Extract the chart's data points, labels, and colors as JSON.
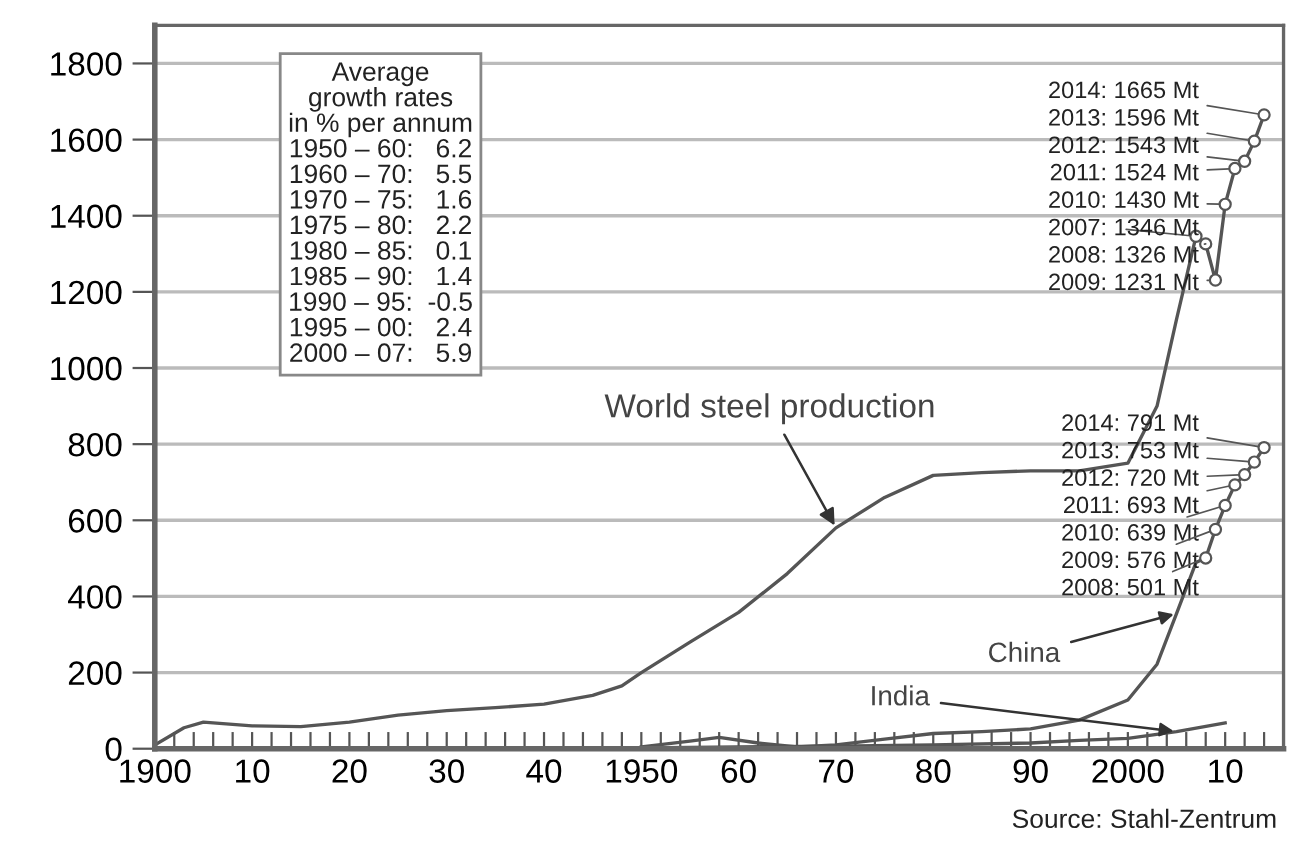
{
  "chart_data": {
    "type": "line",
    "x": [
      1900,
      1903,
      1905,
      1910,
      1915,
      1920,
      1925,
      1930,
      1935,
      1940,
      1945,
      1948,
      1950,
      1955,
      1960,
      1965,
      1970,
      1975,
      1980,
      1985,
      1990,
      1995,
      2000,
      2003,
      2005,
      2007,
      2008,
      2009,
      2010,
      2011,
      2012,
      2013,
      2014
    ],
    "series": [
      {
        "name": "World steel production",
        "color": "#555555",
        "values": [
          10,
          55,
          70,
          60,
          58,
          70,
          88,
          100,
          108,
          117,
          140,
          165,
          200,
          280,
          358,
          460,
          580,
          660,
          718,
          725,
          730,
          730,
          750,
          900,
          1128,
          1346,
          1326,
          1231,
          1430,
          1524,
          1543,
          1596,
          1665
        ]
      },
      {
        "name": "China",
        "color": "#555555",
        "x": [
          1950,
          1955,
          1958,
          1962,
          1966,
          1970,
          1975,
          1980,
          1985,
          1990,
          1995,
          2000,
          2003,
          2005,
          2007,
          2008,
          2009,
          2010,
          2011,
          2012,
          2013,
          2014
        ],
        "values": [
          5,
          20,
          30,
          15,
          5,
          10,
          25,
          40,
          45,
          52,
          75,
          128,
          222,
          355,
          489,
          501,
          576,
          639,
          693,
          720,
          753,
          791
        ]
      },
      {
        "name": "India",
        "color": "#555555",
        "x": [
          1950,
          1960,
          1970,
          1980,
          1990,
          1995,
          2000,
          2005,
          2010
        ],
        "values": [
          2,
          5,
          7,
          10,
          15,
          22,
          27,
          45,
          68
        ]
      }
    ],
    "xlim": [
      1900,
      2016
    ],
    "ylim": [
      0,
      1900
    ],
    "xticks": [
      {
        "value": 1900,
        "label": "1900"
      },
      {
        "value": 1902,
        "label": null
      },
      {
        "value": 1904,
        "label": null
      },
      {
        "value": 1906,
        "label": null
      },
      {
        "value": 1908,
        "label": null
      },
      {
        "value": 1910,
        "label": "10"
      },
      {
        "value": 1912,
        "label": null
      },
      {
        "value": 1914,
        "label": null
      },
      {
        "value": 1916,
        "label": null
      },
      {
        "value": 1918,
        "label": null
      },
      {
        "value": 1920,
        "label": "20"
      },
      {
        "value": 1922,
        "label": null
      },
      {
        "value": 1924,
        "label": null
      },
      {
        "value": 1926,
        "label": null
      },
      {
        "value": 1928,
        "label": null
      },
      {
        "value": 1930,
        "label": "30"
      },
      {
        "value": 1932,
        "label": null
      },
      {
        "value": 1934,
        "label": null
      },
      {
        "value": 1936,
        "label": null
      },
      {
        "value": 1938,
        "label": null
      },
      {
        "value": 1940,
        "label": "40"
      },
      {
        "value": 1942,
        "label": null
      },
      {
        "value": 1944,
        "label": null
      },
      {
        "value": 1946,
        "label": null
      },
      {
        "value": 1948,
        "label": null
      },
      {
        "value": 1950,
        "label": "1950"
      },
      {
        "value": 1952,
        "label": null
      },
      {
        "value": 1954,
        "label": null
      },
      {
        "value": 1956,
        "label": null
      },
      {
        "value": 1958,
        "label": null
      },
      {
        "value": 1960,
        "label": "60"
      },
      {
        "value": 1962,
        "label": null
      },
      {
        "value": 1964,
        "label": null
      },
      {
        "value": 1966,
        "label": null
      },
      {
        "value": 1968,
        "label": null
      },
      {
        "value": 1970,
        "label": "70"
      },
      {
        "value": 1972,
        "label": null
      },
      {
        "value": 1974,
        "label": null
      },
      {
        "value": 1976,
        "label": null
      },
      {
        "value": 1978,
        "label": null
      },
      {
        "value": 1980,
        "label": "80"
      },
      {
        "value": 1982,
        "label": null
      },
      {
        "value": 1984,
        "label": null
      },
      {
        "value": 1986,
        "label": null
      },
      {
        "value": 1988,
        "label": null
      },
      {
        "value": 1990,
        "label": "90"
      },
      {
        "value": 1992,
        "label": null
      },
      {
        "value": 1994,
        "label": null
      },
      {
        "value": 1996,
        "label": null
      },
      {
        "value": 1998,
        "label": null
      },
      {
        "value": 2000,
        "label": "2000"
      },
      {
        "value": 2002,
        "label": null
      },
      {
        "value": 2004,
        "label": null
      },
      {
        "value": 2006,
        "label": null
      },
      {
        "value": 2008,
        "label": null
      },
      {
        "value": 2010,
        "label": "10"
      },
      {
        "value": 2012,
        "label": null
      },
      {
        "value": 2014,
        "label": null
      }
    ],
    "yticks": [
      0,
      200,
      400,
      600,
      800,
      1000,
      1200,
      1400,
      1600,
      1800
    ],
    "grid": "y",
    "annotations": [
      "Average\ngrowth rates\nin % per annum\n1950 – 60:   6.2\n1960 – 70:   5.5\n1970 – 75:   1.6\n1975 – 80:   2.2\n1980 – 85:   0.1\n1985 – 90:   1.4\n1990 – 95:  -0.5\n1995 – 00:   2.4\n2000 – 07:   5.9",
      {
        "text": "2014: 1665 Mt",
        "x": 2014,
        "y": 1665
      },
      {
        "text": "2013: 1596 Mt",
        "x": 2013,
        "y": 1596
      },
      {
        "text": "2012: 1543 Mt",
        "x": 2012,
        "y": 1543
      },
      {
        "text": "2011: 1524 Mt",
        "x": 2011,
        "y": 1524
      },
      {
        "text": "2010: 1430 Mt",
        "x": 2010,
        "y": 1430
      },
      {
        "text": "2007: 1346 Mt",
        "x": 2007,
        "y": 1346
      },
      {
        "text": "2008: 1326 Mt",
        "x": 2008,
        "y": 1326
      },
      {
        "text": "2009: 1231 Mt",
        "x": 2009,
        "y": 1231
      },
      {
        "text": "2014: 791 Mt",
        "x": 2014,
        "y": 791
      },
      {
        "text": "2013: 753 Mt",
        "x": 2013,
        "y": 753
      },
      {
        "text": "2012: 720 Mt",
        "x": 2012,
        "y": 720
      },
      {
        "text": "2011: 693 Mt",
        "x": 2011,
        "y": 693
      },
      {
        "text": "2010: 639 Mt",
        "x": 2010,
        "y": 639
      },
      {
        "text": "2009: 576 Mt",
        "x": 2009,
        "y": 576
      },
      {
        "text": "2008: 501 Mt",
        "x": 2008,
        "y": 501
      },
      "Source: Stahl-Zentrum"
    ]
  }
}
